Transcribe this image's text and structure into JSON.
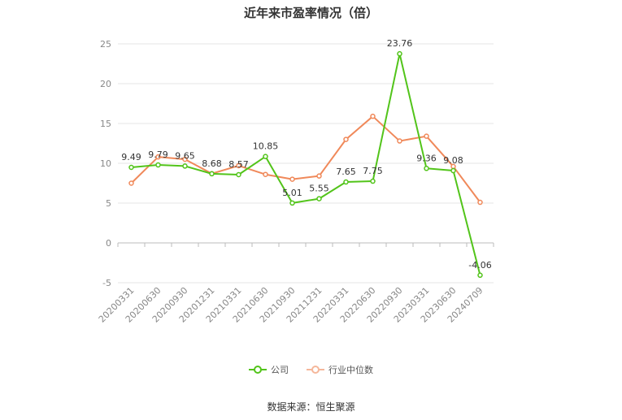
{
  "chart_data": {
    "type": "line",
    "title": "近年来市盈率情况（倍）",
    "categories": [
      "20200331",
      "20200630",
      "20200930",
      "20201231",
      "20210331",
      "20210630",
      "20210930",
      "20211231",
      "20220331",
      "20220630",
      "20220930",
      "20230331",
      "20230630",
      "20240709"
    ],
    "ylim": [
      -5,
      25
    ],
    "yticks": [
      25,
      20,
      15,
      10,
      5,
      0,
      -5
    ],
    "grid": true,
    "legend_position": "bottom",
    "series": [
      {
        "name": "公司",
        "color": "#52c41a",
        "values": [
          9.49,
          9.79,
          9.65,
          8.68,
          8.57,
          10.85,
          5.01,
          5.55,
          7.65,
          7.75,
          23.76,
          9.36,
          9.08,
          -4.06
        ],
        "labels": [
          "9.49",
          "9.79",
          "9.65",
          "8.68",
          "8.57",
          "10.85",
          "5.01",
          "5.55",
          "7.65",
          "7.75",
          "23.76",
          "9.36",
          "9.08",
          "-4.06"
        ]
      },
      {
        "name": "行业中位数",
        "color": "#f0895a",
        "values": [
          7.5,
          10.8,
          10.5,
          8.7,
          9.7,
          8.6,
          8.0,
          8.4,
          13.0,
          15.9,
          12.8,
          13.4,
          9.6,
          5.1
        ]
      }
    ]
  },
  "source": "数据来源：恒生聚源"
}
